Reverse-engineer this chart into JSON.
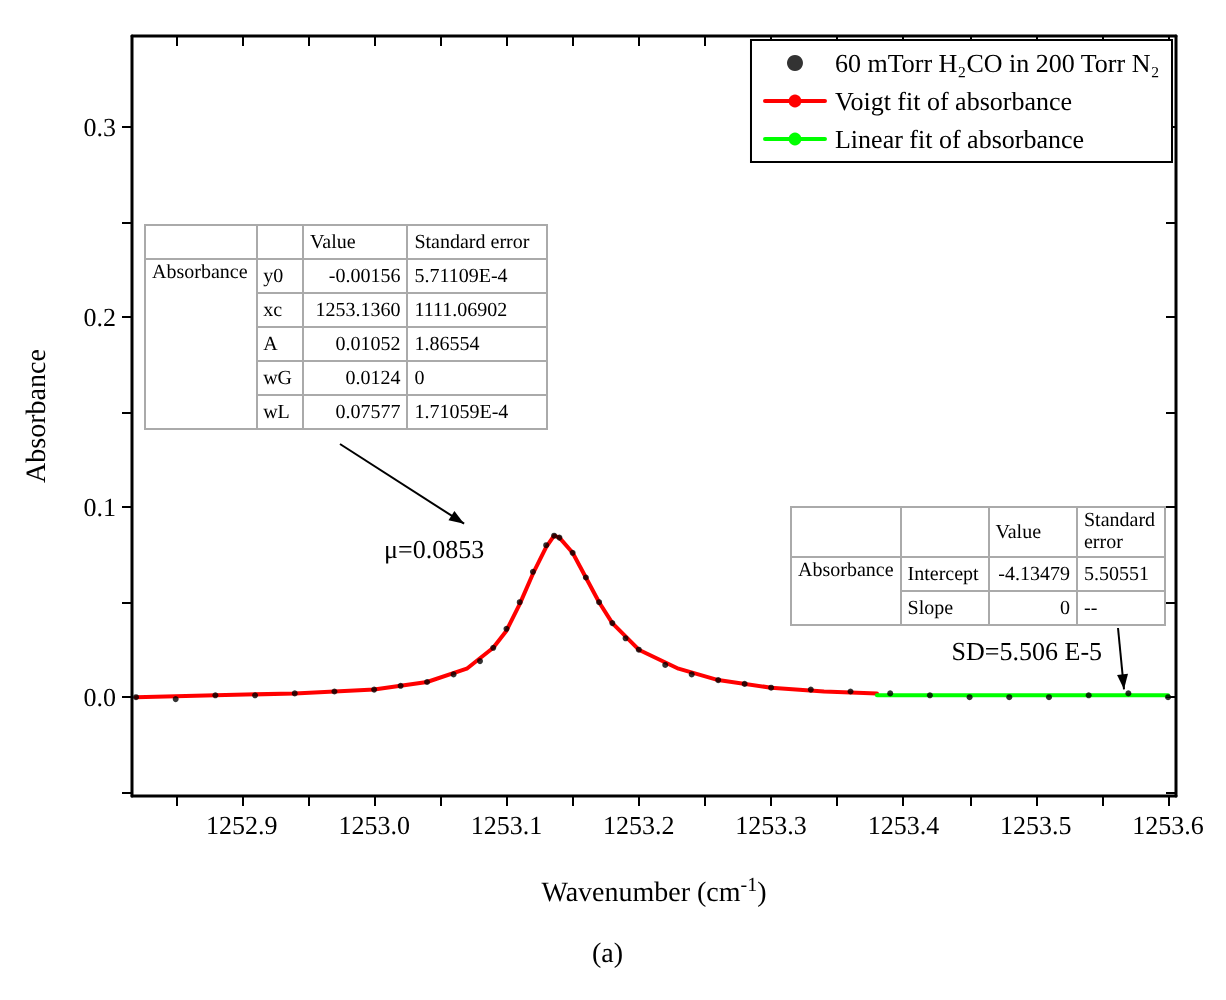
{
  "chart_data": {
    "type": "line",
    "xlabel": "Wavenumber (cm$^{-1}$)",
    "ylabel": "Absorbance",
    "xlim": [
      1252.817,
      1253.606
    ],
    "xticks": [
      1252.9,
      {
        "value": 1253.0,
        "label": "1253.0"
      },
      1253.1,
      1253.2,
      1253.3,
      1253.4,
      1253.5,
      1253.6
    ],
    "ylim": [
      -0.052,
      0.348
    ],
    "yticks": [
      {
        "value": 0,
        "label": "0.0"
      },
      0.1,
      0.2,
      0.3
    ],
    "grid": false,
    "legend": "top right",
    "series": [
      {
        "name": "60 mTorr H₂CO in 200 Torr N₂",
        "type": "scatter",
        "color": "#000000",
        "marker": "circle",
        "x": [
          1252.82,
          1252.85,
          1252.88,
          1252.91,
          1252.94,
          1252.97,
          1253.0,
          1253.02,
          1253.04,
          1253.06,
          1253.08,
          1253.09,
          1253.1,
          1253.11,
          1253.12,
          1253.13,
          1253.136,
          1253.14,
          1253.15,
          1253.16,
          1253.17,
          1253.18,
          1253.19,
          1253.2,
          1253.22,
          1253.24,
          1253.26,
          1253.28,
          1253.3,
          1253.33,
          1253.36,
          1253.39,
          1253.42,
          1253.45,
          1253.48,
          1253.51,
          1253.54,
          1253.57,
          1253.6
        ],
        "values": [
          0.0,
          -0.001,
          0.001,
          0.001,
          0.002,
          0.003,
          0.004,
          0.006,
          0.008,
          0.012,
          0.019,
          0.026,
          0.036,
          0.05,
          0.066,
          0.08,
          0.085,
          0.084,
          0.076,
          0.063,
          0.05,
          0.039,
          0.031,
          0.025,
          0.017,
          0.012,
          0.009,
          0.007,
          0.005,
          0.004,
          0.003,
          0.002,
          0.001,
          0.0,
          0.0,
          0.0,
          0.001,
          0.002,
          0.0
        ]
      },
      {
        "name": "Voigt fit of absorbance",
        "color": "#ff0000",
        "marker": "none",
        "line_style": "solid",
        "x": [
          1252.82,
          1252.88,
          1252.94,
          1253.0,
          1253.04,
          1253.07,
          1253.09,
          1253.1,
          1253.11,
          1253.12,
          1253.13,
          1253.136,
          1253.14,
          1253.15,
          1253.16,
          1253.17,
          1253.18,
          1253.2,
          1253.23,
          1253.26,
          1253.3,
          1253.34,
          1253.38
        ],
        "values": [
          0.0,
          0.001,
          0.002,
          0.004,
          0.008,
          0.015,
          0.026,
          0.035,
          0.049,
          0.065,
          0.079,
          0.085,
          0.084,
          0.076,
          0.063,
          0.05,
          0.039,
          0.025,
          0.015,
          0.009,
          0.005,
          0.003,
          0.002
        ]
      },
      {
        "name": "Linear fit of absorbance",
        "color": "#00ff00",
        "marker": "none",
        "line_style": "solid",
        "x": [
          1253.38,
          1253.6
        ],
        "values": [
          0.001,
          0.001
        ]
      }
    ],
    "annotations": [
      {
        "text": "μ=0.0853",
        "x": 1253.136,
        "y": 0.085
      },
      {
        "text": "SD=5.506 E-5",
        "x": 1253.58,
        "y": 0.001
      },
      "(a)",
      "Value",
      "Standard error",
      "Absorbance",
      "y0",
      "-0.00156",
      "5.71109E-4",
      "xc",
      "1253.1360",
      "1111.06902",
      "A",
      "0.01052",
      "1.86554",
      "wG",
      "0.0124",
      "0",
      "wL",
      "0.07577",
      "1.71059E-4",
      "Value",
      "Standard error",
      "Absorbance",
      "Intercept",
      "-4.13479",
      "5.50551",
      "Slope",
      "0",
      "--"
    ]
  }
}
